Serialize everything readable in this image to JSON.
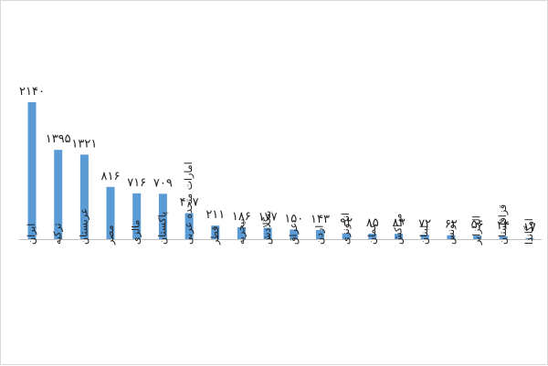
{
  "chart_data": {
    "type": "bar",
    "title": "",
    "xlabel": "",
    "ylabel": "",
    "ylim": [
      0,
      2140
    ],
    "grid": false,
    "legend": "none",
    "bar_color": "#5b9bd5",
    "categories": [
      "ایران",
      "ترکیه",
      "عربستان",
      "مصر",
      "مالزی",
      "پاکستان",
      "امارات متحده عربی",
      "قطر",
      "نیجریه",
      "بنگلادش",
      "عراق",
      "اردن",
      "اندونزی",
      "عمان",
      "مراکش",
      "لبنان",
      "تونس",
      "الجزایر",
      "قزاقستان",
      "اوگاندا"
    ],
    "values": [
      2140,
      1395,
      1321,
      816,
      716,
      709,
      407,
      211,
      186,
      177,
      150,
      143,
      92,
      85,
      83,
      72,
      62,
      56,
      44,
      17
    ],
    "value_labels": [
      "۲۱۴۰",
      "۱۳۹۵",
      "۱۳۲۱",
      "۸۱۶",
      "۷۱۶",
      "۷۰۹",
      "۴۰۷",
      "۲۱۱",
      "۱۸۶",
      "۱۷۷",
      "۱۵۰",
      "۱۴۳",
      "۹۲",
      "۸۵",
      "۸۳",
      "۷۲",
      "۶۲",
      "۵۶",
      "۴۴",
      "۱۷"
    ]
  }
}
